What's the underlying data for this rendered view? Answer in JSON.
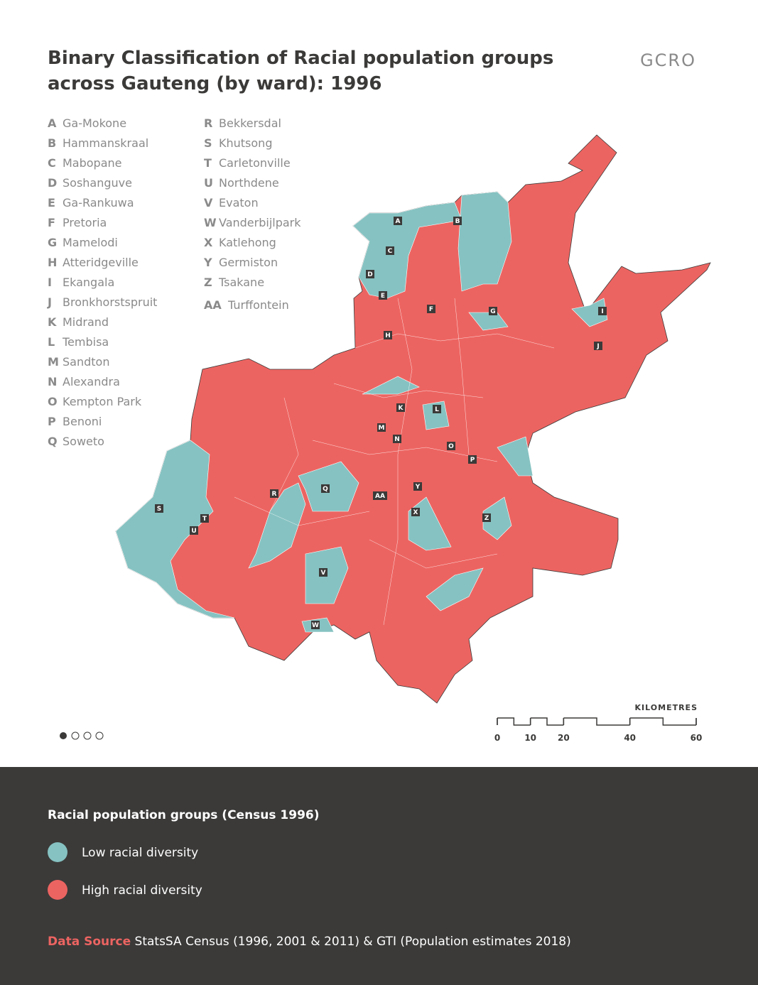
{
  "header": {
    "title_lines": [
      "Binary Classification of Racial population groups",
      "across Gauteng (by ward): 1996"
    ],
    "logo": "GCRO"
  },
  "places": [
    {
      "code": "A",
      "name": "Ga-Mokone"
    },
    {
      "code": "B",
      "name": "Hammanskraal"
    },
    {
      "code": "C",
      "name": "Mabopane"
    },
    {
      "code": "D",
      "name": "Soshanguve"
    },
    {
      "code": "E",
      "name": "Ga-Rankuwa"
    },
    {
      "code": "F",
      "name": "Pretoria"
    },
    {
      "code": "G",
      "name": "Mamelodi"
    },
    {
      "code": "H",
      "name": "Atteridgeville"
    },
    {
      "code": "I",
      "name": "Ekangala"
    },
    {
      "code": "J",
      "name": "Bronkhorstspruit"
    },
    {
      "code": "K",
      "name": "Midrand"
    },
    {
      "code": "L",
      "name": "Tembisa"
    },
    {
      "code": "M",
      "name": "Sandton"
    },
    {
      "code": "N",
      "name": "Alexandra"
    },
    {
      "code": "O",
      "name": "Kempton Park"
    },
    {
      "code": "P",
      "name": "Benoni"
    },
    {
      "code": "Q",
      "name": "Soweto"
    },
    {
      "code": "R",
      "name": "Bekkersdal"
    },
    {
      "code": "S",
      "name": "Khutsong"
    },
    {
      "code": "T",
      "name": "Carletonville"
    },
    {
      "code": "U",
      "name": "Northdene"
    },
    {
      "code": "V",
      "name": "Evaton"
    },
    {
      "code": "W",
      "name": "Vanderbijlpark"
    },
    {
      "code": "X",
      "name": "Katlehong"
    },
    {
      "code": "Y",
      "name": "Germiston"
    },
    {
      "code": "Z",
      "name": "Tsakane"
    },
    {
      "code": "AA",
      "name": "Turffontein"
    }
  ],
  "scale_bar": {
    "label": "KILOMETRES",
    "ticks": [
      0,
      10,
      20,
      40,
      60
    ]
  },
  "legend": {
    "title": "Racial population groups (Census 1996)",
    "items": [
      {
        "label": "Low racial diversity",
        "color": "#86c2c2"
      },
      {
        "label": "High racial diversity",
        "color": "#ec6461"
      }
    ]
  },
  "footer": {
    "source_label": "Data Source",
    "source_text": "StatsSA Census (1996, 2001 & 2011) & GTI (Population estimates 2018)"
  }
}
